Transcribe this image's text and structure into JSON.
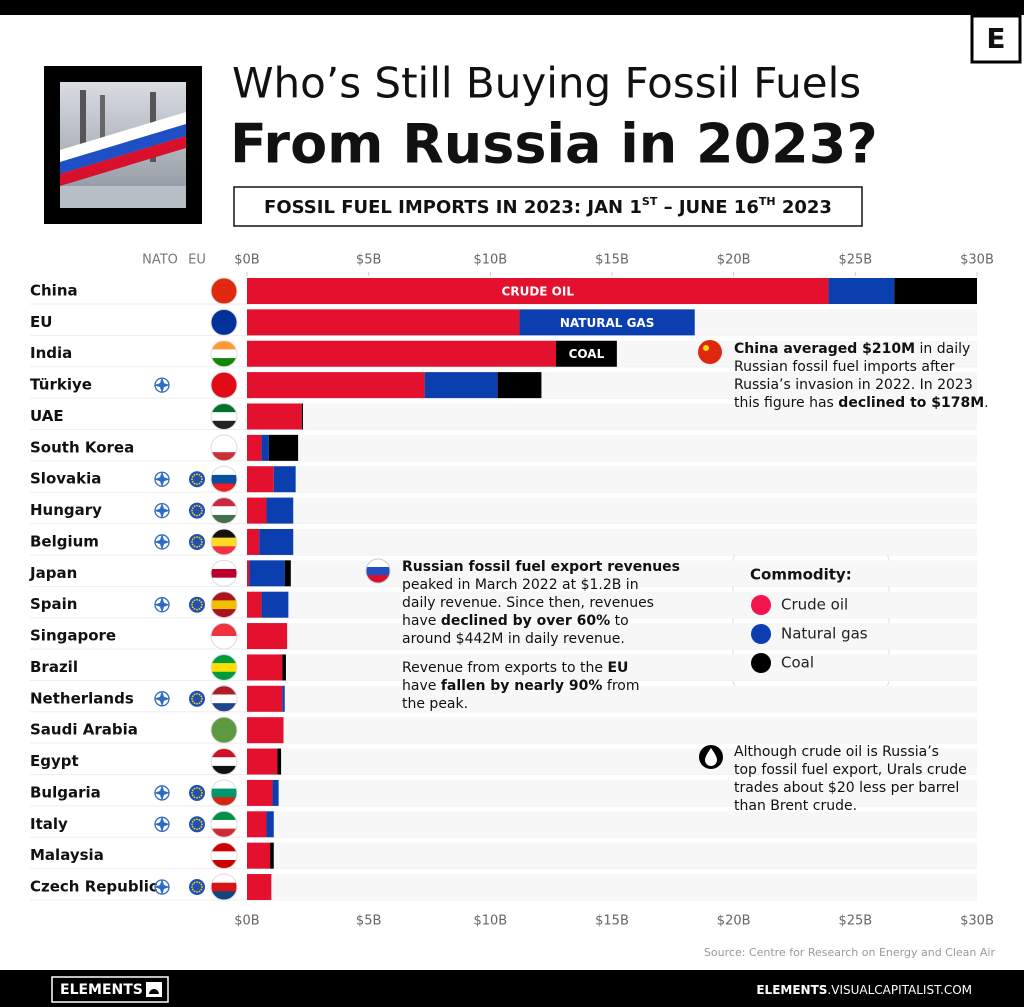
{
  "chart_data": {
    "type": "bar",
    "orientation": "horizontal",
    "stacked": true,
    "title": [
      "Who’s Still Buying Fossil Fuels",
      "From Russia in 2023?"
    ],
    "subtitle": [
      {
        "text": "FOSSIL FUEL IMPORTS IN 2023: JAN 1"
      },
      {
        "text": "ST",
        "sup": true
      },
      {
        "text": " – JUNE 16"
      },
      {
        "text": "TH",
        "sup": true
      },
      {
        "text": " 2023"
      }
    ],
    "categories": [
      "China",
      "EU",
      "India",
      "Türkiye",
      "UAE",
      "South Korea",
      "Slovakia",
      "Hungary",
      "Belgium",
      "Japan",
      "Spain",
      "Singapore",
      "Brazil",
      "Netherlands",
      "Saudi Arabia",
      "Egypt",
      "Bulgaria",
      "Italy",
      "Malaysia",
      "Czech Republic"
    ],
    "series": [
      {
        "name": "Crude oil",
        "color": "#e3102e",
        "legend_color": "#f2144f",
        "values": [
          23.9,
          11.2,
          12.7,
          7.3,
          2.25,
          0.6,
          1.1,
          0.8,
          0.5,
          0.1,
          0.6,
          1.65,
          1.45,
          1.45,
          1.5,
          1.25,
          1.05,
          0.8,
          0.95,
          1.0
        ]
      },
      {
        "name": "Natural gas",
        "color": "#0b3fb0",
        "legend_color": "#0b3fb0",
        "values": [
          2.7,
          7.2,
          0,
          3.0,
          0,
          0.3,
          0.9,
          1.1,
          1.4,
          1.45,
          1.1,
          0,
          0,
          0.1,
          0,
          0,
          0.25,
          0.3,
          0,
          0
        ]
      },
      {
        "name": "Coal",
        "color": "#000000",
        "legend_color": "#000000",
        "values": [
          3.4,
          0,
          2.5,
          1.8,
          0.05,
          1.2,
          0,
          0,
          0,
          0.25,
          0,
          0,
          0.15,
          0,
          0,
          0.15,
          0,
          0,
          0.15,
          0
        ]
      }
    ],
    "segment_labels": [
      {
        "text": "CRUDE OIL",
        "series": "Crude oil",
        "category": "China"
      },
      {
        "text": "NATURAL GAS",
        "series": "Natural gas",
        "category": "EU"
      },
      {
        "text": "COAL",
        "series": "Coal",
        "category": "India"
      }
    ],
    "membership_headers": [
      "NATO",
      "EU"
    ],
    "nato": [
      false,
      false,
      false,
      true,
      false,
      false,
      true,
      true,
      true,
      false,
      true,
      false,
      false,
      true,
      false,
      false,
      true,
      true,
      false,
      true
    ],
    "eu": [
      false,
      false,
      false,
      false,
      false,
      false,
      true,
      true,
      true,
      false,
      true,
      false,
      false,
      true,
      false,
      false,
      true,
      true,
      false,
      true
    ],
    "flags": [
      [
        "#de2910"
      ],
      [
        "#003399"
      ],
      [
        "#ff9933",
        "#ffffff",
        "#138808"
      ],
      [
        "#e30a17"
      ],
      [
        "#00732f",
        "#ffffff",
        "#222222"
      ],
      [
        "#ffffff",
        "#ffffff",
        "#cd2e3a"
      ],
      [
        "#ffffff",
        "#0b4ea2",
        "#ee1c25"
      ],
      [
        "#cd2a3e",
        "#ffffff",
        "#436f4d"
      ],
      [
        "#111111",
        "#fdda24",
        "#ef3340"
      ],
      [
        "#ffffff",
        "#bc002d",
        "#ffffff"
      ],
      [
        "#aa151b",
        "#f1bf00",
        "#aa151b"
      ],
      [
        "#ef3340",
        "#ffffff"
      ],
      [
        "#009c3b",
        "#ffdf00",
        "#009c3b"
      ],
      [
        "#ae1c28",
        "#ffffff",
        "#21468b"
      ],
      [
        "#5d9a3f"
      ],
      [
        "#ce1126",
        "#ffffff",
        "#111111"
      ],
      [
        "#ffffff",
        "#00966e",
        "#d62612"
      ],
      [
        "#009246",
        "#ffffff",
        "#ce2b37"
      ],
      [
        "#cc0001",
        "#ffffff",
        "#cc0001"
      ],
      [
        "#ffffff",
        "#d7141a",
        "#11457e"
      ]
    ],
    "xlim": [
      0,
      30
    ],
    "xticks": [
      {
        "value": 0,
        "label": "$0B"
      },
      {
        "value": 5,
        "label": "$5B"
      },
      {
        "value": 10,
        "label": "$10B"
      },
      {
        "value": 15,
        "label": "$15B"
      },
      {
        "value": 20,
        "label": "$20B"
      },
      {
        "value": 25,
        "label": "$25B"
      },
      {
        "value": 30,
        "label": "$30B"
      }
    ],
    "legend_title": "Commodity:",
    "notes": [
      {
        "lines": [
          [
            {
              "text": "China averaged $210M",
              "bold": true
            },
            {
              "text": " in daily"
            }
          ],
          [
            {
              "text": "Russian fossil fuel imports after"
            }
          ],
          [
            {
              "text": "Russia’s invasion in 2022. In 2023"
            }
          ],
          [
            {
              "text": "this figure has "
            },
            {
              "text": "declined to $178M",
              "bold": true
            },
            {
              "text": "."
            }
          ]
        ]
      },
      {
        "lines": [
          [
            {
              "text": "Russian fossil fuel export revenues",
              "bold": true
            }
          ],
          [
            {
              "text": "peaked in March 2022 at $1.2B in"
            }
          ],
          [
            {
              "text": "daily revenue. Since then, revenues"
            }
          ],
          [
            {
              "text": "have "
            },
            {
              "text": "declined by over 60%",
              "bold": true
            },
            {
              "text": " to"
            }
          ],
          [
            {
              "text": "around $442M in daily revenue."
            }
          ]
        ]
      },
      {
        "lines": [
          [
            {
              "text": "Revenue from exports to the "
            },
            {
              "text": "EU",
              "bold": true
            }
          ],
          [
            {
              "text": "have "
            },
            {
              "text": "fallen by nearly 90%",
              "bold": true
            },
            {
              "text": " from"
            }
          ],
          [
            {
              "text": "the peak."
            }
          ]
        ]
      },
      {
        "lines": [
          [
            {
              "text": "Although crude oil is Russia’s"
            }
          ],
          [
            {
              "text": "top fossil fuel export, Urals crude"
            }
          ],
          [
            {
              "text": "trades about $20 less per barrel"
            }
          ],
          [
            {
              "text": "than Brent crude."
            }
          ]
        ]
      }
    ],
    "source": "Source: Centre for Research on Energy and Clean Air",
    "brand": "ELEMENTS",
    "site": [
      {
        "text": "ELEMENTS",
        "bold": true
      },
      {
        "text": ".VISUALCAPITALIST.COM"
      }
    ],
    "logo": "E"
  }
}
